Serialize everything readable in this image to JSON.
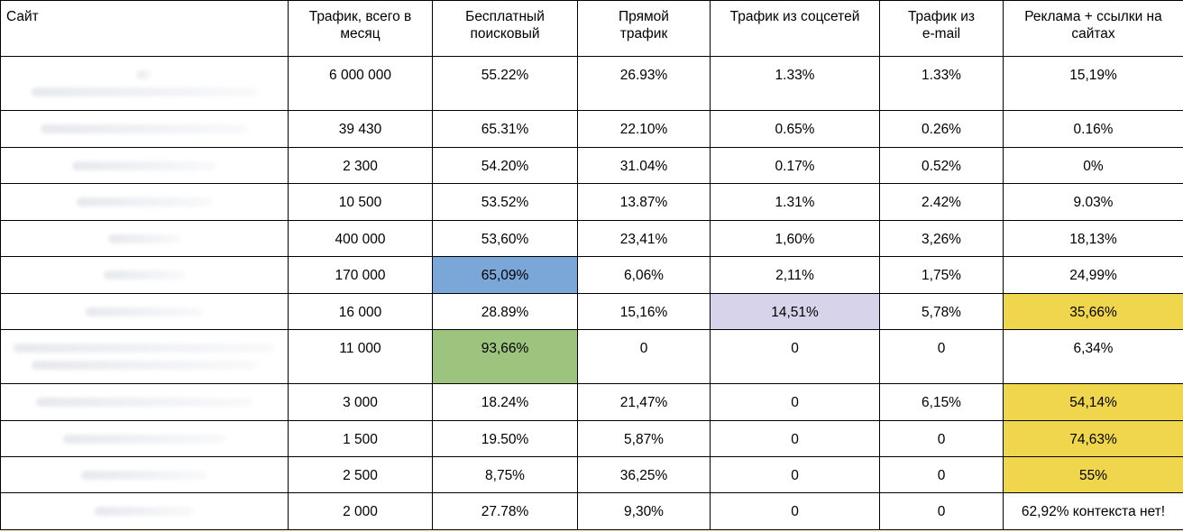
{
  "colors": {
    "highlight_blue": "#7aa6d8",
    "highlight_green": "#9cc47e",
    "highlight_lavender": "#d7d3ea",
    "highlight_yellow": "#efd64c"
  },
  "table": {
    "headers": {
      "site": "Сайт",
      "total_1": "Трафик, всего в",
      "total_2": "месяц",
      "search_1": "Бесплатный",
      "search_2": "поисковый",
      "direct_1": "Прямой",
      "direct_2": "трафик",
      "social": "Трафик из соцсетей",
      "email_1": "Трафик из",
      "email_2": "e-mail",
      "ads_1": "Реклама + ссылки на",
      "ads_2": "сайтах"
    },
    "rows": [
      {
        "total": "6 000 000",
        "search": "55.22%",
        "direct": "26.93%",
        "social": "1.33%",
        "email": "1.33%",
        "ads": "15,19%"
      },
      {
        "total": "39 430",
        "search": "65.31%",
        "direct": "22.10%",
        "social": "0.65%",
        "email": "0.26%",
        "ads": "0.16%"
      },
      {
        "total": "2 300",
        "search": "54.20%",
        "direct": "31.04%",
        "social": "0.17%",
        "email": "0.52%",
        "ads": "0%"
      },
      {
        "total": "10  500",
        "search": "53.52%",
        "direct": "13.87%",
        "social": "1.31%",
        "email": "2.42%",
        "ads": "9.03%"
      },
      {
        "total": "400 000",
        "search": "53,60%",
        "direct": "23,41%",
        "social": "1,60%",
        "email": "3,26%",
        "ads": "18,13%"
      },
      {
        "total": "170 000",
        "search": "65,09%",
        "direct": "6,06%",
        "social": "2,11%",
        "email": "1,75%",
        "ads": "24,99%"
      },
      {
        "total": "16 000",
        "search": "28.89%",
        "direct": "15,16%",
        "social": "14,51%",
        "email": "5,78%",
        "ads": "35,66%"
      },
      {
        "total": "11 000",
        "search": "93,66%",
        "direct": "0",
        "social": "0",
        "email": "0",
        "ads": "6,34%"
      },
      {
        "total": "3 000",
        "search": "18.24%",
        "direct": "21,47%",
        "social": "0",
        "email": "6,15%",
        "ads": "54,14%"
      },
      {
        "total": "1 500",
        "search": "19.50%",
        "direct": "5,87%",
        "social": "0",
        "email": "0",
        "ads": "74,63%"
      },
      {
        "total": "2 500",
        "search": "8,75%",
        "direct": "36,25%",
        "social": "0",
        "email": "0",
        "ads": "55%"
      },
      {
        "total": "2 000",
        "search": "27.78%",
        "direct": "9,30%",
        "social": "0",
        "email": "0",
        "ads": "62,92% контекста нет!"
      }
    ]
  }
}
